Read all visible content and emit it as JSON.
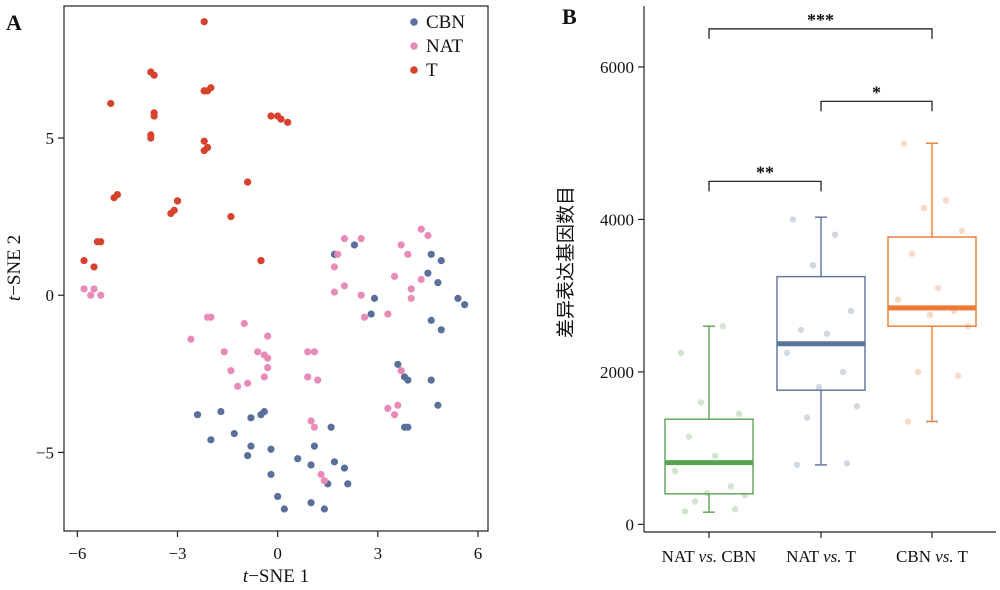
{
  "panel_a_label": "A",
  "panel_b_label": "B",
  "chart_data": [
    {
      "type": "scatter",
      "panel": "A",
      "xlabel": {
        "italic": "t",
        "rest": "−SNE 1"
      },
      "ylabel": {
        "italic": "t",
        "rest": "−SNE 2"
      },
      "xlim": [
        -6.4,
        6.3
      ],
      "ylim": [
        -7.5,
        9.2
      ],
      "xticks": [
        -6,
        -3,
        0,
        3,
        6
      ],
      "xtick_labels": [
        "−6",
        "−3",
        "0",
        "3",
        "6"
      ],
      "yticks": [
        -5,
        0,
        5
      ],
      "ytick_labels": [
        "−5",
        "0",
        "5"
      ],
      "grid": false,
      "legend_position": "top-right",
      "series": [
        {
          "name": "CBN",
          "color": "#5a6f9a",
          "points": [
            [
              2.3,
              1.6
            ],
            [
              1.7,
              1.3
            ],
            [
              4.6,
              1.3
            ],
            [
              4.9,
              1.1
            ],
            [
              4.5,
              0.7
            ],
            [
              4.8,
              0.4
            ],
            [
              5.4,
              -0.1
            ],
            [
              5.6,
              -0.3
            ],
            [
              2.9,
              -0.1
            ],
            [
              2.8,
              -0.6
            ],
            [
              4.6,
              -0.8
            ],
            [
              4.9,
              -1.1
            ],
            [
              3.6,
              -2.2
            ],
            [
              3.8,
              -2.6
            ],
            [
              3.9,
              -2.7
            ],
            [
              4.6,
              -2.7
            ],
            [
              4.8,
              -3.5
            ],
            [
              3.8,
              -4.2
            ],
            [
              3.9,
              -4.2
            ],
            [
              -2.4,
              -3.8
            ],
            [
              -1.7,
              -3.7
            ],
            [
              -2.0,
              -4.6
            ],
            [
              -1.3,
              -4.4
            ],
            [
              -0.8,
              -3.9
            ],
            [
              -0.5,
              -3.8
            ],
            [
              -0.4,
              -3.7
            ],
            [
              -0.8,
              -4.8
            ],
            [
              -0.2,
              -4.9
            ],
            [
              -0.9,
              -5.1
            ],
            [
              0.6,
              -5.2
            ],
            [
              1.0,
              -5.4
            ],
            [
              1.7,
              -5.3
            ],
            [
              2.0,
              -5.5
            ],
            [
              -0.2,
              -5.7
            ],
            [
              0.0,
              -6.4
            ],
            [
              0.2,
              -6.8
            ],
            [
              1.0,
              -6.6
            ],
            [
              1.4,
              -6.8
            ],
            [
              2.1,
              -6.0
            ],
            [
              1.5,
              -6.0
            ],
            [
              1.6,
              -4.2
            ],
            [
              1.1,
              -4.8
            ]
          ]
        },
        {
          "name": "NAT",
          "color": "#e88bb8",
          "points": [
            [
              -5.8,
              0.2
            ],
            [
              -5.6,
              0.0
            ],
            [
              -5.5,
              0.2
            ],
            [
              -5.3,
              0.0
            ],
            [
              -2.1,
              -0.7
            ],
            [
              -2.0,
              -0.7
            ],
            [
              -2.6,
              -1.4
            ],
            [
              -1.6,
              -1.8
            ],
            [
              -1.4,
              -2.4
            ],
            [
              -1.2,
              -2.9
            ],
            [
              -0.9,
              -2.8
            ],
            [
              -0.6,
              -1.8
            ],
            [
              -0.4,
              -1.9
            ],
            [
              -0.3,
              -2.0
            ],
            [
              -0.3,
              -2.3
            ],
            [
              -0.4,
              -2.6
            ],
            [
              -0.3,
              -1.3
            ],
            [
              -1.0,
              -0.9
            ],
            [
              0.9,
              -1.8
            ],
            [
              1.1,
              -1.8
            ],
            [
              0.9,
              -2.6
            ],
            [
              1.2,
              -2.7
            ],
            [
              1.0,
              -4.0
            ],
            [
              1.1,
              -4.2
            ],
            [
              1.3,
              -5.7
            ],
            [
              1.4,
              -5.9
            ],
            [
              1.8,
              1.3
            ],
            [
              2.0,
              1.8
            ],
            [
              1.7,
              0.9
            ],
            [
              1.7,
              0.1
            ],
            [
              2.0,
              0.3
            ],
            [
              2.5,
              1.8
            ],
            [
              2.5,
              0.0
            ],
            [
              2.6,
              -0.7
            ],
            [
              3.3,
              -0.6
            ],
            [
              3.5,
              0.6
            ],
            [
              3.7,
              1.6
            ],
            [
              3.9,
              1.3
            ],
            [
              4.3,
              2.1
            ],
            [
              4.5,
              1.9
            ],
            [
              4.0,
              0.2
            ],
            [
              4.0,
              -0.1
            ],
            [
              4.3,
              0.5
            ],
            [
              3.7,
              -2.4
            ],
            [
              3.7,
              -2.4
            ],
            [
              3.6,
              -3.5
            ],
            [
              3.5,
              -3.8
            ],
            [
              3.3,
              -3.6
            ]
          ]
        },
        {
          "name": "T",
          "color": "#d9412f",
          "points": [
            [
              -2.2,
              8.7
            ],
            [
              -3.8,
              7.1
            ],
            [
              -3.7,
              7.0
            ],
            [
              -5.0,
              6.1
            ],
            [
              -2.2,
              6.5
            ],
            [
              -2.1,
              6.5
            ],
            [
              -2.0,
              6.6
            ],
            [
              -3.7,
              5.8
            ],
            [
              -3.7,
              5.7
            ],
            [
              -3.8,
              5.1
            ],
            [
              -3.8,
              5.0
            ],
            [
              -2.2,
              4.9
            ],
            [
              -2.1,
              4.7
            ],
            [
              -2.2,
              4.6
            ],
            [
              -0.2,
              5.7
            ],
            [
              0.0,
              5.7
            ],
            [
              0.1,
              5.6
            ],
            [
              0.3,
              5.5
            ],
            [
              -4.8,
              3.2
            ],
            [
              -4.9,
              3.1
            ],
            [
              -3.0,
              3.0
            ],
            [
              -3.0,
              3.0
            ],
            [
              -3.2,
              2.6
            ],
            [
              -3.1,
              2.7
            ],
            [
              -1.4,
              2.5
            ],
            [
              -0.9,
              3.6
            ],
            [
              -0.9,
              3.6
            ],
            [
              -5.4,
              1.7
            ],
            [
              -5.3,
              1.7
            ],
            [
              -5.8,
              1.1
            ],
            [
              -5.5,
              0.9
            ],
            [
              -0.5,
              1.1
            ],
            [
              -0.5,
              1.1
            ],
            [
              -2.2,
              6.5
            ]
          ]
        }
      ]
    },
    {
      "type": "box",
      "panel": "B",
      "ylabel": "差异表达基因数目",
      "ylim": [
        -100,
        6800
      ],
      "yticks": [
        0,
        2000,
        4000,
        6000
      ],
      "ytick_labels": [
        "0",
        "2000",
        "4000",
        "6000"
      ],
      "grid": false,
      "groups": [
        {
          "label_parts": [
            {
              "text": "NAT ",
              "italic": false
            },
            {
              "text": "vs.",
              "italic": true
            },
            {
              "text": " CBN",
              "italic": false
            }
          ],
          "color": "#5aa352",
          "whisker_low": 160,
          "q1": 400,
          "median": 810,
          "q3": 1380,
          "whisker_high": 2600,
          "points": [
            2250,
            2600,
            1600,
            1450,
            1150,
            900,
            700,
            500,
            410,
            380,
            300,
            200,
            170
          ]
        },
        {
          "label_parts": [
            {
              "text": "NAT ",
              "italic": false
            },
            {
              "text": "vs.",
              "italic": true
            },
            {
              "text": " T",
              "italic": false
            }
          ],
          "color": "#5a739a",
          "whisker_low": 780,
          "q1": 1760,
          "median": 2370,
          "q3": 3250,
          "whisker_high": 4030,
          "points": [
            4000,
            3800,
            3400,
            2800,
            2550,
            2500,
            2250,
            2000,
            1800,
            1550,
            1400,
            800,
            780
          ]
        },
        {
          "label_parts": [
            {
              "text": "CBN ",
              "italic": false
            },
            {
              "text": "vs.",
              "italic": true
            },
            {
              "text": " T",
              "italic": false
            }
          ],
          "color": "#ea7a34",
          "whisker_low": 1350,
          "q1": 2600,
          "median": 2840,
          "q3": 3770,
          "whisker_high": 5000,
          "points": [
            5000,
            4250,
            4150,
            3850,
            3550,
            3100,
            2950,
            2800,
            2750,
            2600,
            2000,
            1950,
            1350
          ]
        }
      ],
      "comparisons": [
        {
          "from": 0,
          "to": 2,
          "label": "***",
          "y": 6500
        },
        {
          "from": 1,
          "to": 2,
          "label": "*",
          "y": 5550
        },
        {
          "from": 0,
          "to": 1,
          "label": "**",
          "y": 4500
        }
      ]
    }
  ]
}
